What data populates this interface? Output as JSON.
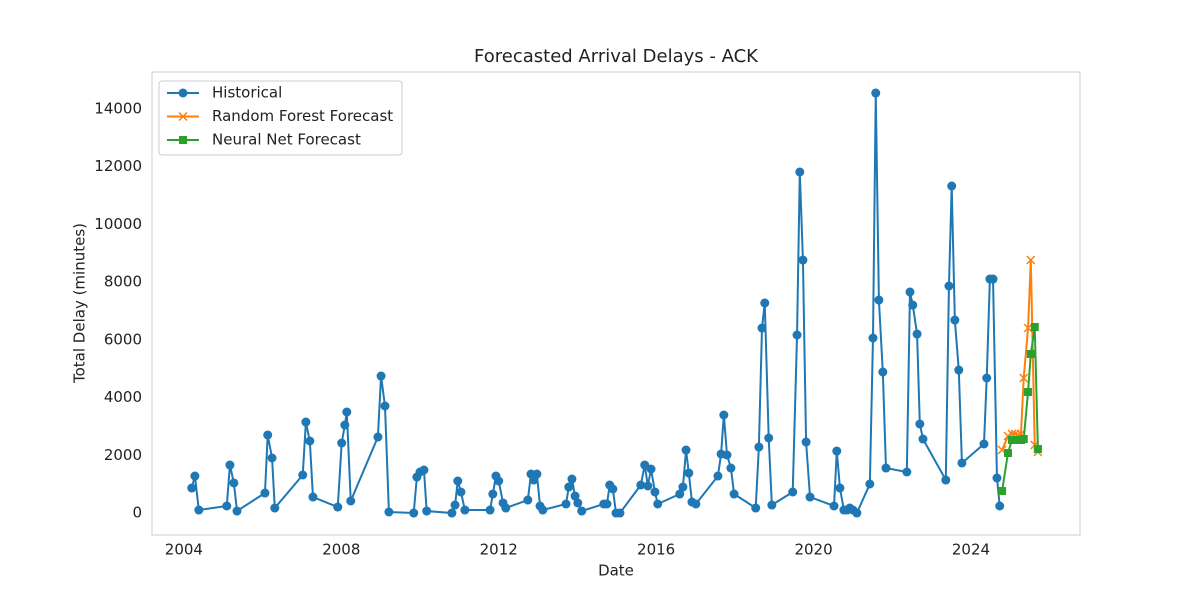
{
  "chart_data": {
    "type": "line",
    "title": "Forecasted Arrival Delays - ACK",
    "x_label": "Date",
    "y_label": "Total Delay (minutes)",
    "xlim": [
      2003.19,
      2026.77
    ],
    "xticks": [
      2004,
      2008,
      2012,
      2016,
      2020,
      2024
    ],
    "ylim": [
      -762,
      15281
    ],
    "yticks": [
      0,
      2000,
      4000,
      6000,
      8000,
      10000,
      12000,
      14000
    ],
    "grid": false,
    "legend": "upper left",
    "series": [
      {
        "name": "Historical",
        "color": "#1f77b4",
        "marker": "circle",
        "x": [
          2004.2,
          2004.28,
          2004.38,
          2005.09,
          2005.17,
          2005.27,
          2005.35,
          2006.06,
          2006.13,
          2006.24,
          2006.31,
          2007.02,
          2007.1,
          2007.2,
          2007.28,
          2007.91,
          2008.01,
          2008.09,
          2008.14,
          2008.24,
          2008.93,
          2009.01,
          2009.11,
          2009.21,
          2009.84,
          2009.92,
          2010.0,
          2010.1,
          2010.17,
          2010.81,
          2010.89,
          2010.96,
          2011.04,
          2011.14,
          2011.78,
          2011.85,
          2011.93,
          2012.0,
          2012.11,
          2012.18,
          2012.74,
          2012.82,
          2012.89,
          2012.97,
          2013.05,
          2013.12,
          2013.71,
          2013.78,
          2013.86,
          2013.94,
          2014.01,
          2014.11,
          2014.67,
          2014.75,
          2014.82,
          2014.9,
          2014.98,
          2015.08,
          2015.61,
          2015.71,
          2015.79,
          2015.87,
          2015.97,
          2016.04,
          2016.6,
          2016.68,
          2016.76,
          2016.83,
          2016.91,
          2017.01,
          2017.57,
          2017.65,
          2017.72,
          2017.8,
          2017.9,
          2017.98,
          2018.53,
          2018.61,
          2018.69,
          2018.76,
          2018.86,
          2018.94,
          2019.47,
          2019.58,
          2019.65,
          2019.73,
          2019.81,
          2019.91,
          2020.52,
          2020.59,
          2020.67,
          2020.77,
          2020.85,
          2020.92,
          2021.0,
          2021.1,
          2021.43,
          2021.51,
          2021.58,
          2021.66,
          2021.76,
          2021.84,
          2022.37,
          2022.45,
          2022.52,
          2022.63,
          2022.7,
          2022.78,
          2023.36,
          2023.44,
          2023.51,
          2023.59,
          2023.69,
          2023.77,
          2024.33,
          2024.4,
          2024.48,
          2024.56,
          2024.66,
          2024.73
        ],
        "values": [
          866,
          1282,
          104,
          243,
          1663,
          1040,
          69,
          693,
          2703,
          1906,
          173,
          1317,
          3153,
          2495,
          554,
          208,
          2426,
          3049,
          3500,
          416,
          2633,
          4747,
          3708,
          35,
          0,
          1247,
          1421,
          1490,
          69,
          0,
          277,
          1109,
          728,
          104,
          104,
          658,
          1282,
          1109,
          347,
          173,
          450,
          1351,
          1143,
          1351,
          243,
          104,
          312,
          901,
          1178,
          589,
          347,
          69,
          312,
          312,
          970,
          832,
          0,
          0,
          970,
          1663,
          936,
          1525,
          728,
          312,
          658,
          901,
          2183,
          1386,
          381,
          312,
          1282,
          2044,
          3396,
          2010,
          1559,
          658,
          173,
          2287,
          6410,
          7277,
          2599,
          277,
          728,
          6168,
          11816,
          8766,
          2460,
          554,
          243,
          2148,
          866,
          104,
          104,
          173,
          104,
          0,
          1005,
          6064,
          14553,
          7380,
          4886,
          1559,
          1421,
          7658,
          7207,
          6202,
          3084,
          2564,
          1143,
          7866,
          11331,
          6687,
          4955,
          1733,
          2391,
          4678,
          8108,
          8108,
          1213,
          243
        ]
      },
      {
        "name": "Random Forest Forecast",
        "color": "#ff7f0e",
        "marker": "x",
        "x": [
          2024.79,
          2024.94,
          2025.04,
          2025.12,
          2025.19,
          2025.27,
          2025.34,
          2025.45,
          2025.52,
          2025.62,
          2025.7
        ],
        "values": [
          2183,
          2668,
          2737,
          2737,
          2703,
          2737,
          4678,
          6410,
          8766,
          2356,
          2114
        ]
      },
      {
        "name": "Neural Net Forecast",
        "color": "#2ca02c",
        "marker": "square",
        "x": [
          2024.79,
          2024.94,
          2025.04,
          2025.12,
          2025.19,
          2025.27,
          2025.34,
          2025.45,
          2025.52,
          2025.62,
          2025.7
        ],
        "values": [
          762,
          2079,
          2530,
          2530,
          2530,
          2530,
          2564,
          4193,
          5510,
          6445,
          2218
        ]
      }
    ]
  }
}
